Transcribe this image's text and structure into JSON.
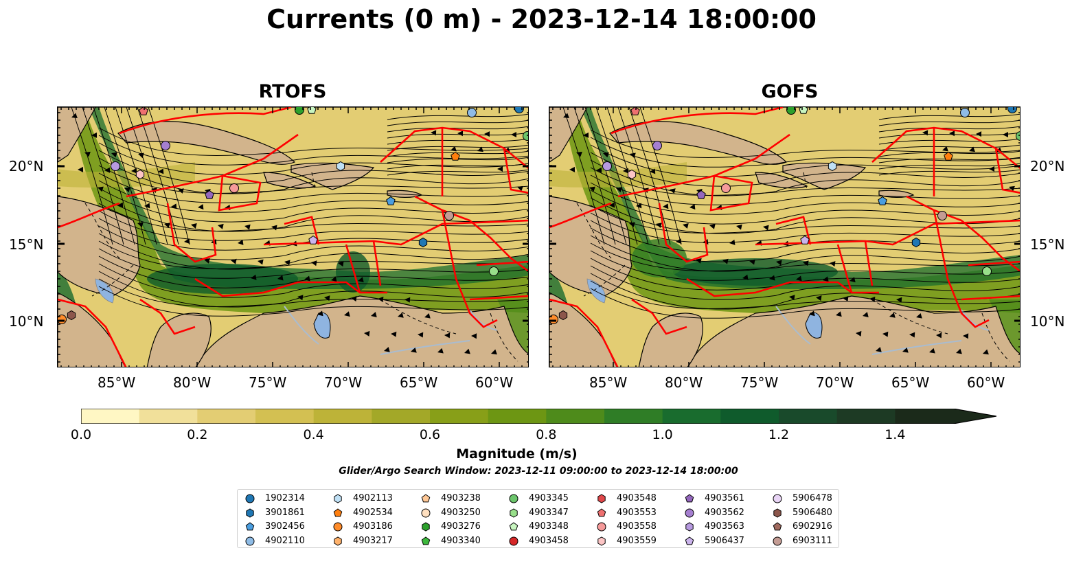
{
  "title": "Currents (0 m) - 2023-12-14 18:00:00",
  "panels": [
    "RTOFS",
    "GOFS"
  ],
  "lon_ticks": [
    "85°W",
    "80°W",
    "75°W",
    "70°W",
    "65°W",
    "60°W"
  ],
  "lat_ticks": [
    "20°N",
    "15°N",
    "10°N"
  ],
  "colorbar": {
    "label": "Magnitude (m/s)",
    "ticks": [
      "0.0",
      "0.2",
      "0.4",
      "0.6",
      "0.8",
      "1.0",
      "1.2",
      "1.4"
    ],
    "range": [
      0,
      1.5
    ],
    "extend": "max",
    "colors": [
      "#fff7c4",
      "#f1e09a",
      "#e3cd73",
      "#d3c052",
      "#bdb338",
      "#a3a828",
      "#889f18",
      "#6d9613",
      "#4e8b1b",
      "#2f7d26",
      "#196c2e",
      "#0f5b2c",
      "#194a2b",
      "#1d3a24",
      "#1b2a1a"
    ]
  },
  "search_window": "Glider/Argo Search Window: 2023-12-11 09:00:00 to 2023-12-14 18:00:00",
  "legend": [
    {
      "id": "1902314",
      "marker": "circle",
      "color": "#1f77b4"
    },
    {
      "id": "3901861",
      "marker": "hexagon",
      "color": "#1f77b4"
    },
    {
      "id": "3902456",
      "marker": "pentagon",
      "color": "#4b9ee0"
    },
    {
      "id": "4902110",
      "marker": "circle",
      "color": "#8fbce6"
    },
    {
      "id": "4902113",
      "marker": "hexagon",
      "color": "#bfe0f5"
    },
    {
      "id": "4902534",
      "marker": "pentagon",
      "color": "#ff7f0e"
    },
    {
      "id": "4903186",
      "marker": "circle",
      "color": "#ff8c2a"
    },
    {
      "id": "4903217",
      "marker": "hexagon",
      "color": "#ffb26b"
    },
    {
      "id": "4903238",
      "marker": "pentagon",
      "color": "#ffc896"
    },
    {
      "id": "4903250",
      "marker": "circle",
      "color": "#ffe0c0"
    },
    {
      "id": "4903276",
      "marker": "hexagon",
      "color": "#2ca02c"
    },
    {
      "id": "4903340",
      "marker": "pentagon",
      "color": "#3cb83c"
    },
    {
      "id": "4903345",
      "marker": "circle",
      "color": "#6cc56c"
    },
    {
      "id": "4903347",
      "marker": "hexagon",
      "color": "#98df8a"
    },
    {
      "id": "4903348",
      "marker": "pentagon",
      "color": "#c8f5c0"
    },
    {
      "id": "4903458",
      "marker": "circle",
      "color": "#d62728"
    },
    {
      "id": "4903548",
      "marker": "hexagon",
      "color": "#e0474a"
    },
    {
      "id": "4903553",
      "marker": "pentagon",
      "color": "#ee7070"
    },
    {
      "id": "4903558",
      "marker": "circle",
      "color": "#f59a9a"
    },
    {
      "id": "4903559",
      "marker": "hexagon",
      "color": "#fcc5c5"
    },
    {
      "id": "4903561",
      "marker": "pentagon",
      "color": "#9467bd"
    },
    {
      "id": "4903562",
      "marker": "circle",
      "color": "#a57fd0"
    },
    {
      "id": "4903563",
      "marker": "hexagon",
      "color": "#b79ae0"
    },
    {
      "id": "5906437",
      "marker": "pentagon",
      "color": "#cbb4ec"
    },
    {
      "id": "5906478",
      "marker": "circle",
      "color": "#e8d4f5"
    },
    {
      "id": "5906480",
      "marker": "hexagon",
      "color": "#8c564b"
    },
    {
      "id": "6902916",
      "marker": "pentagon",
      "color": "#a06a5e"
    },
    {
      "id": "6903111",
      "marker": "circle",
      "color": "#c49c94"
    }
  ],
  "colors": {
    "land": "#d2b48c",
    "lake": "#8fb4e0",
    "eez": "#ff0000",
    "streamline": "#000000"
  }
}
